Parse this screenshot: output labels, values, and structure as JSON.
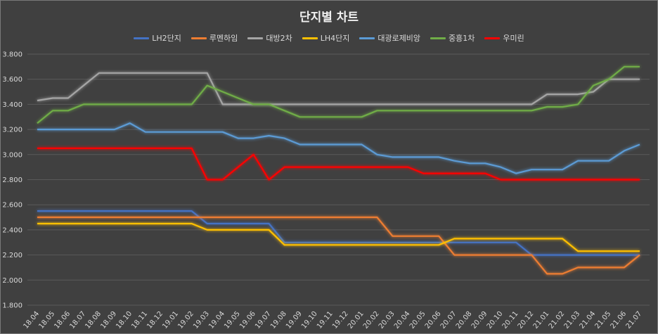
{
  "chart_data": {
    "type": "line",
    "title": "단지별 차트",
    "xlabel": "",
    "ylabel": "",
    "ylim": [
      1.8,
      3.8
    ],
    "yticks": [
      1.8,
      2.0,
      2.2,
      2.4,
      2.6,
      2.8,
      3.0,
      3.2,
      3.4,
      3.6,
      3.8
    ],
    "ytick_labels": [
      "1.800",
      "2.000",
      "2.200",
      "2.400",
      "2.600",
      "2.800",
      "3.000",
      "3.200",
      "3.400",
      "3.600",
      "3.800"
    ],
    "grid": true,
    "legend_position": "top",
    "categories": [
      "18.04",
      "18.05",
      "18.06",
      "18.07",
      "18.08",
      "18.09",
      "18.10",
      "18.11",
      "18.12",
      "19.01",
      "19.02",
      "19.03",
      "19.04",
      "19.05",
      "19.06",
      "19.07",
      "19.08",
      "19.09",
      "19.10",
      "19.11",
      "19.12",
      "20.01",
      "20.02",
      "20.03",
      "20.04",
      "20.05",
      "20.06",
      "20.07",
      "20.08",
      "20.09",
      "20.10",
      "20.11",
      "20.12",
      "21.01",
      "21.02",
      "21.03",
      "21.04",
      "21.05",
      "21.06",
      "21.07"
    ],
    "series": [
      {
        "name": "LH2단지",
        "color": "#4472c4",
        "values": [
          2.55,
          2.55,
          2.55,
          2.55,
          2.55,
          2.55,
          2.55,
          2.55,
          2.55,
          2.55,
          2.55,
          2.45,
          2.45,
          2.45,
          2.45,
          2.45,
          2.3,
          2.3,
          2.3,
          2.3,
          2.3,
          2.3,
          2.3,
          2.3,
          2.3,
          2.3,
          2.3,
          2.3,
          2.3,
          2.3,
          2.3,
          2.3,
          2.2,
          2.2,
          2.2,
          2.2,
          2.2,
          2.2,
          2.2,
          2.2
        ]
      },
      {
        "name": "루멘하임",
        "color": "#ed7d31",
        "values": [
          2.5,
          2.5,
          2.5,
          2.5,
          2.5,
          2.5,
          2.5,
          2.5,
          2.5,
          2.5,
          2.5,
          2.5,
          2.5,
          2.5,
          2.5,
          2.5,
          2.5,
          2.5,
          2.5,
          2.5,
          2.5,
          2.5,
          2.5,
          2.35,
          2.35,
          2.35,
          2.35,
          2.2,
          2.2,
          2.2,
          2.2,
          2.2,
          2.2,
          2.05,
          2.05,
          2.1,
          2.1,
          2.1,
          2.1,
          2.2
        ]
      },
      {
        "name": "대방2차",
        "color": "#a5a5a5",
        "values": [
          3.43,
          3.45,
          3.45,
          3.55,
          3.65,
          3.65,
          3.65,
          3.65,
          3.65,
          3.65,
          3.65,
          3.65,
          3.4,
          3.4,
          3.4,
          3.4,
          3.4,
          3.4,
          3.4,
          3.4,
          3.4,
          3.4,
          3.4,
          3.4,
          3.4,
          3.4,
          3.4,
          3.4,
          3.4,
          3.4,
          3.4,
          3.4,
          3.4,
          3.48,
          3.48,
          3.48,
          3.5,
          3.6,
          3.6,
          3.6
        ]
      },
      {
        "name": "LH4단지",
        "color": "#ffc000",
        "values": [
          2.45,
          2.45,
          2.45,
          2.45,
          2.45,
          2.45,
          2.45,
          2.45,
          2.45,
          2.45,
          2.45,
          2.4,
          2.4,
          2.4,
          2.4,
          2.4,
          2.28,
          2.28,
          2.28,
          2.28,
          2.28,
          2.28,
          2.28,
          2.28,
          2.28,
          2.28,
          2.28,
          2.33,
          2.33,
          2.33,
          2.33,
          2.33,
          2.33,
          2.33,
          2.33,
          2.23,
          2.23,
          2.23,
          2.23,
          2.23
        ]
      },
      {
        "name": "대광로제비앙",
        "color": "#5b9bd5",
        "values": [
          3.2,
          3.2,
          3.2,
          3.2,
          3.2,
          3.2,
          3.25,
          3.18,
          3.18,
          3.18,
          3.18,
          3.18,
          3.18,
          3.13,
          3.13,
          3.15,
          3.13,
          3.08,
          3.08,
          3.08,
          3.08,
          3.08,
          3.0,
          2.98,
          2.98,
          2.98,
          2.98,
          2.95,
          2.93,
          2.93,
          2.9,
          2.85,
          2.88,
          2.88,
          2.88,
          2.95,
          2.95,
          2.95,
          3.03,
          3.08
        ]
      },
      {
        "name": "중흥1차",
        "color": "#70ad47",
        "values": [
          3.25,
          3.35,
          3.35,
          3.4,
          3.4,
          3.4,
          3.4,
          3.4,
          3.4,
          3.4,
          3.4,
          3.55,
          3.5,
          3.45,
          3.4,
          3.4,
          3.35,
          3.3,
          3.3,
          3.3,
          3.3,
          3.3,
          3.35,
          3.35,
          3.35,
          3.35,
          3.35,
          3.35,
          3.35,
          3.35,
          3.35,
          3.35,
          3.35,
          3.38,
          3.38,
          3.4,
          3.55,
          3.6,
          3.7,
          3.7
        ]
      },
      {
        "name": "우미린",
        "color": "#ff0000",
        "values": [
          3.05,
          3.05,
          3.05,
          3.05,
          3.05,
          3.05,
          3.05,
          3.05,
          3.05,
          3.05,
          3.05,
          2.8,
          2.8,
          2.9,
          3.0,
          2.8,
          2.9,
          2.9,
          2.9,
          2.9,
          2.9,
          2.9,
          2.9,
          2.9,
          2.9,
          2.85,
          2.85,
          2.85,
          2.85,
          2.85,
          2.8,
          2.8,
          2.8,
          2.8,
          2.8,
          2.8,
          2.8,
          2.8,
          2.8,
          2.8
        ]
      }
    ]
  }
}
